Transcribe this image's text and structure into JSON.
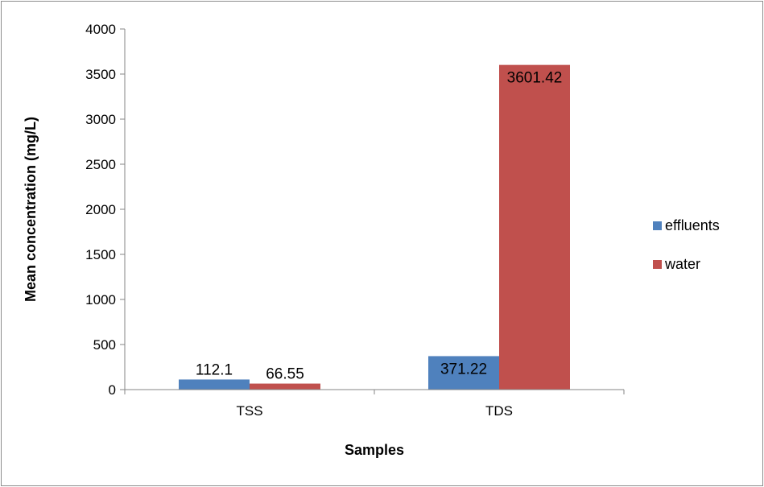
{
  "chart_data": {
    "type": "bar",
    "title": "",
    "xlabel": "Samples",
    "ylabel": "Mean concentration (mg/L)",
    "categories": [
      "TSS",
      "TDS"
    ],
    "series": [
      {
        "name": "effluents",
        "color": "#4f81bd",
        "values": [
          112.1,
          371.22
        ],
        "labels": [
          "112.1",
          "371.22"
        ]
      },
      {
        "name": "water",
        "color": "#c0504d",
        "values": [
          66.55,
          3601.42
        ],
        "labels": [
          "66.55",
          "3601.42"
        ]
      }
    ],
    "ylim": [
      0,
      4000
    ],
    "yticks": [
      "0",
      "500",
      "1000",
      "1500",
      "2000",
      "2500",
      "3000",
      "3500",
      "4000"
    ],
    "grid": false,
    "legend": "right"
  }
}
